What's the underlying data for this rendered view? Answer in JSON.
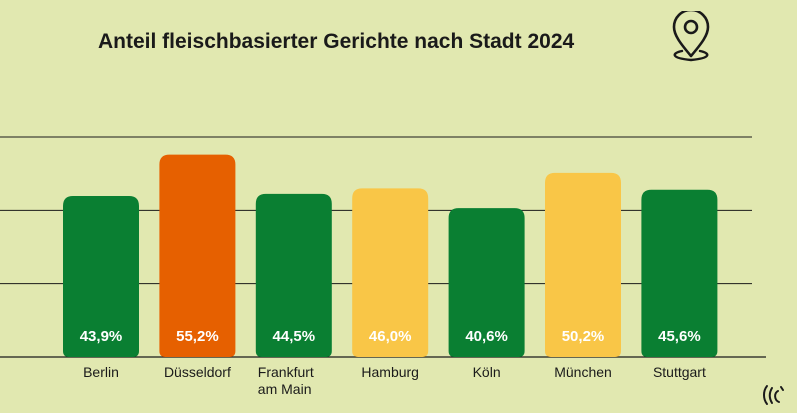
{
  "title": "Anteil fleischbasierter Gerichte nach Stadt 2024",
  "icons": {
    "title_icon": "location-pin-icon",
    "brand_logo": "brand-logo-icon"
  },
  "colors": {
    "background": "#e1e8b0",
    "green": "#0a7f32",
    "orange": "#e66000",
    "yellow": "#f9c647",
    "gridline": "#1a1a1a"
  },
  "chart_data": {
    "type": "bar",
    "title": "Anteil fleischbasierter Gerichte nach Stadt 2024",
    "categories": [
      "Berlin",
      "Düsseldorf",
      "Frankfurt am Main",
      "Hamburg",
      "Köln",
      "München",
      "Stuttgart"
    ],
    "category_lines": [
      [
        "Berlin"
      ],
      [
        "Düsseldorf"
      ],
      [
        "Frankfurt",
        "am Main"
      ],
      [
        "Hamburg"
      ],
      [
        "Köln"
      ],
      [
        "München"
      ],
      [
        "Stuttgart"
      ]
    ],
    "values": [
      43.9,
      55.2,
      44.5,
      46.0,
      40.6,
      50.2,
      45.6
    ],
    "value_labels": [
      "43,9%",
      "55,2%",
      "44,5%",
      "46,0%",
      "40,6%",
      "50,2%",
      "45,6%"
    ],
    "bar_colors": [
      "#0a7f32",
      "#e66000",
      "#0a7f32",
      "#f9c647",
      "#0a7f32",
      "#f9c647",
      "#0a7f32"
    ],
    "unit": "%",
    "ylim": [
      0,
      60
    ],
    "grid": true,
    "xlabel": "",
    "ylabel": ""
  }
}
